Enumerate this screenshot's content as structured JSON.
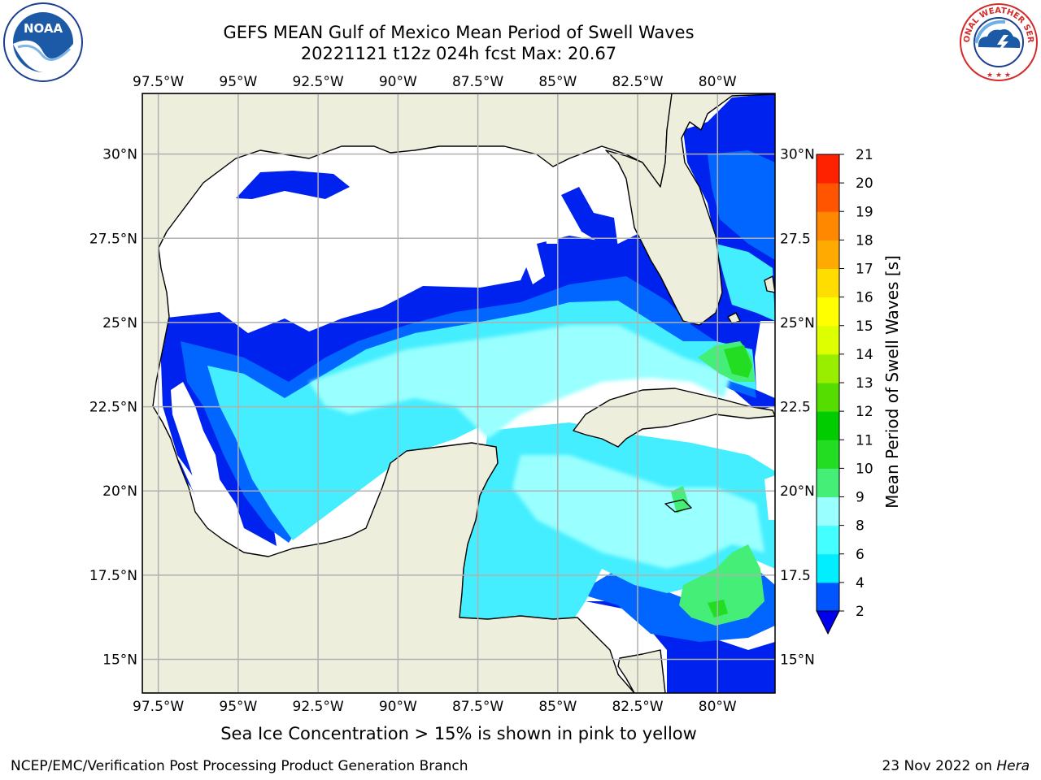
{
  "title_line1": "GEFS MEAN Gulf of Mexico Mean Period of Swell Waves",
  "title_line2": "20221121 t12z 024h fcst   Max: 20.67",
  "lon_ticks": [
    "97.5°W",
    "95°W",
    "92.5°W",
    "90°W",
    "87.5°W",
    "85°W",
    "82.5°W",
    "80°W"
  ],
  "lon_values": [
    -97.5,
    -95,
    -92.5,
    -90,
    -87.5,
    -85,
    -82.5,
    -80
  ],
  "lat_ticks_left": [
    "30°N",
    "27.5°N",
    "25°N",
    "22.5°N",
    "20°N",
    "17.5°N",
    "15°N"
  ],
  "lat_ticks_right": [
    "30°N",
    "27.5",
    "25°N",
    "22.5",
    "20°N",
    "17.5",
    "15°N"
  ],
  "lat_values": [
    30,
    27.5,
    25,
    22.5,
    20,
    17.5,
    15
  ],
  "extent": {
    "lon_min": -98,
    "lon_max": -78.2,
    "lat_min": 14,
    "lat_max": 31.8
  },
  "colorbar": {
    "label": "Mean Period of Swell Waves [s]",
    "ticks": [
      "2",
      "4",
      "6",
      "8",
      "9",
      "10",
      "11",
      "12",
      "13",
      "14",
      "15",
      "16",
      "17",
      "18",
      "19",
      "20",
      "21"
    ],
    "colors": [
      "#0055ff",
      "#00eeff",
      "#44ffff",
      "#99ffff",
      "#44ee77",
      "#22dd22",
      "#00cc00",
      "#55dd00",
      "#99ee00",
      "#ddff00",
      "#ffff00",
      "#ffdd00",
      "#ffaa00",
      "#ff8800",
      "#ff5500",
      "#ff2200"
    ],
    "under_color": "#0000ee"
  },
  "colors": {
    "land": "#eeeedd",
    "blue": "#0022ee",
    "mid_blue": "#0066ff",
    "cyan": "#44eeff",
    "light_cyan": "#99ffff",
    "green": "#44ee77",
    "yellow": "#ffff00",
    "orange": "#ff8800",
    "red": "#ff2200",
    "grid": "#b0b0b0"
  },
  "caption": "Sea Ice Concentration > 15% is shown in pink to yellow",
  "footer_left": "NCEP/EMC/Verification Post Processing Product Generation Branch",
  "footer_right_prefix": "23 Nov 2022 on",
  "footer_right_host": "Hera",
  "logos": {
    "noaa_text": "NOAA",
    "nws_text": "NATIONAL WEATHER SERVICE"
  }
}
